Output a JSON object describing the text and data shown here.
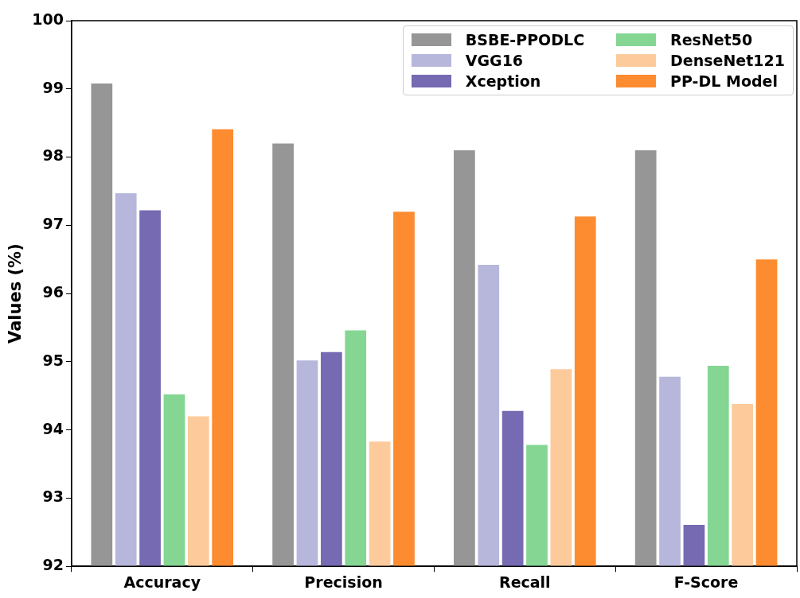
{
  "chart_data": {
    "type": "bar",
    "ylabel": "Values (%)",
    "categories": [
      "Accuracy",
      "Precision",
      "Recall",
      "F-Score"
    ],
    "series": [
      {
        "name": "BSBE-PPODLC",
        "color": "#969696",
        "values": [
          99.08,
          98.2,
          98.1,
          98.1
        ]
      },
      {
        "name": "VGG16",
        "color": "#b7b7dc",
        "values": [
          97.47,
          95.02,
          96.42,
          94.78
        ]
      },
      {
        "name": "Xception",
        "color": "#766ab2",
        "values": [
          97.22,
          95.14,
          94.28,
          92.61
        ]
      },
      {
        "name": "ResNet50",
        "color": "#84d692",
        "values": [
          94.52,
          95.46,
          93.78,
          94.94
        ]
      },
      {
        "name": "DenseNet121",
        "color": "#fdcb9b",
        "values": [
          94.2,
          93.83,
          94.89,
          94.38
        ]
      },
      {
        "name": "PP-DL Model",
        "color": "#fd8c30",
        "values": [
          98.41,
          97.2,
          97.13,
          96.5
        ]
      }
    ],
    "ylim": [
      92,
      100
    ],
    "yticks": [
      92,
      93,
      94,
      95,
      96,
      97,
      98,
      99,
      100
    ],
    "grid": false,
    "legend": "top right"
  }
}
